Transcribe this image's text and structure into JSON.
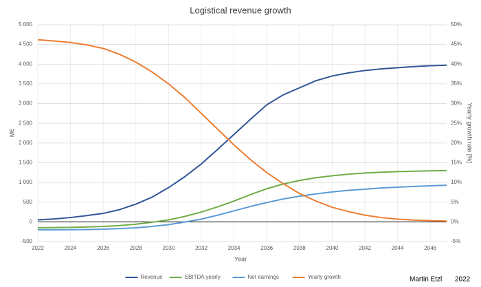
{
  "chart_data": {
    "type": "line",
    "title": "Logistical revenue growth",
    "x_label": "Year",
    "y_label": "M€",
    "y2_label": "Yearly growth rate [%]",
    "x": [
      2022,
      2023,
      2024,
      2025,
      2026,
      2027,
      2028,
      2029,
      2030,
      2031,
      2032,
      2033,
      2034,
      2035,
      2036,
      2037,
      2038,
      2039,
      2040,
      2041,
      2042,
      2043,
      2044,
      2045,
      2046,
      2047
    ],
    "xlim": [
      2022,
      2047
    ],
    "xticks": [
      2022,
      2024,
      2026,
      2028,
      2030,
      2032,
      2034,
      2036,
      2038,
      2040,
      2042,
      2044,
      2046
    ],
    "ylim": [
      -500,
      5000
    ],
    "yticks": [
      -500,
      0,
      500,
      {
        "value": 1000,
        "label": "1 000"
      },
      {
        "value": 1500,
        "label": "1 500"
      },
      {
        "value": 2000,
        "label": "2 000"
      },
      {
        "value": 2500,
        "label": "2 500"
      },
      {
        "value": 3000,
        "label": "3 000"
      },
      {
        "value": 3500,
        "label": "3 500"
      },
      {
        "value": 4000,
        "label": "4 000"
      },
      {
        "value": 4500,
        "label": "4 500"
      },
      {
        "value": 5000,
        "label": "5 000"
      }
    ],
    "y2lim": [
      -5,
      50
    ],
    "y2ticks": [
      {
        "value": -5,
        "label": "-5%"
      },
      {
        "value": 0,
        "label": "0%"
      },
      {
        "value": 5,
        "label": "5%"
      },
      {
        "value": 10,
        "label": "10%"
      },
      {
        "value": 15,
        "label": "15%"
      },
      {
        "value": 20,
        "label": "20%"
      },
      {
        "value": 25,
        "label": "25%"
      },
      {
        "value": 30,
        "label": "30%"
      },
      {
        "value": 35,
        "label": "35%"
      },
      {
        "value": 40,
        "label": "40%"
      },
      {
        "value": 45,
        "label": "45%"
      },
      {
        "value": 50,
        "label": "50%"
      }
    ],
    "grid": true,
    "legend": "bottom",
    "series": [
      {
        "name": "Revenue",
        "color": "#2f5597",
        "values": [
          50,
          75,
          110,
          160,
          215,
          310,
          450,
          630,
          870,
          1150,
          1470,
          1840,
          2220,
          2600,
          2970,
          3220,
          3400,
          3580,
          3700,
          3780,
          3840,
          3880,
          3910,
          3940,
          3960,
          3975
        ]
      },
      {
        "name": "EBITDA yearly",
        "color": "#70ad47",
        "values": [
          -150,
          -145,
          -140,
          -130,
          -115,
          -95,
          -60,
          -10,
          50,
          140,
          250,
          380,
          530,
          690,
          840,
          960,
          1050,
          1120,
          1170,
          1210,
          1240,
          1260,
          1275,
          1285,
          1295,
          1300
        ]
      },
      {
        "name": "Net earnings",
        "color": "#5b9bd5",
        "values": [
          -200,
          -200,
          -198,
          -195,
          -185,
          -170,
          -150,
          -115,
          -70,
          -5,
          70,
          170,
          280,
          390,
          490,
          580,
          650,
          710,
          760,
          800,
          830,
          860,
          880,
          900,
          915,
          930
        ]
      },
      {
        "name": "Yearly growth",
        "color": "#ed7d31",
        "axis": "y2",
        "values": [
          46.2,
          45.9,
          45.5,
          44.9,
          44,
          42.5,
          40.5,
          38,
          35,
          31.5,
          27.5,
          23.5,
          19.5,
          15.8,
          12.5,
          9.7,
          7.2,
          5.3,
          3.7,
          2.6,
          1.7,
          1.1,
          0.7,
          0.45,
          0.3,
          0.2
        ]
      }
    ],
    "footer": [
      "Martin Etzl",
      "2022"
    ]
  }
}
